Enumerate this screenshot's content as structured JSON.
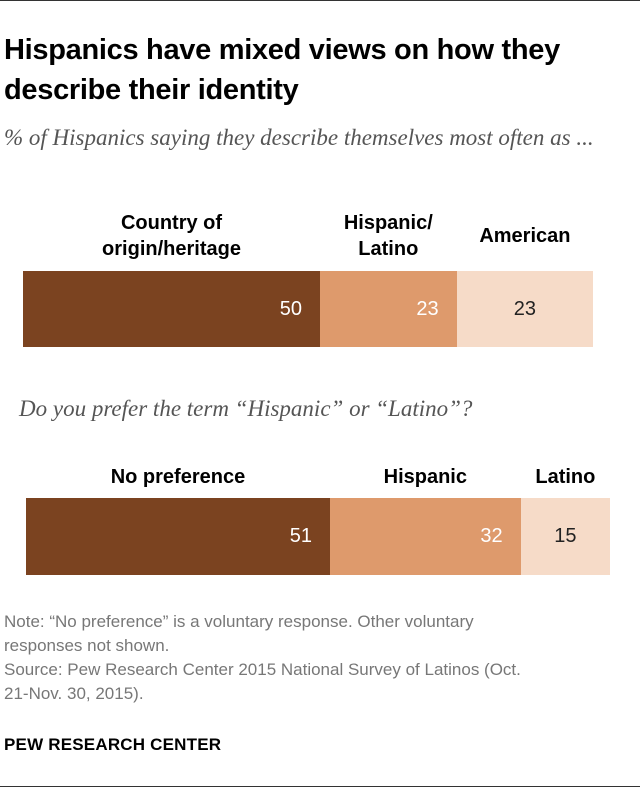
{
  "title": "Hispanics have mixed views on how they describe their identity",
  "chart_data": [
    {
      "type": "bar",
      "orientation": "horizontal-stacked",
      "subtitle": "% of Hispanics saying they describe themselves most often as ...",
      "categories": [
        "Country of origin/heritage",
        "Hispanic/ Latino",
        "American"
      ],
      "category_lines": [
        [
          "Country of",
          "origin/heritage"
        ],
        [
          "Hispanic/",
          "Latino"
        ],
        [
          "American"
        ]
      ],
      "values": [
        50,
        23,
        23
      ],
      "colors": [
        "#7b4320",
        "#de9a6c",
        "#f6dbc8"
      ],
      "text_colors": [
        "#ffffff",
        "#ffffff",
        "#222222"
      ]
    },
    {
      "type": "bar",
      "orientation": "horizontal-stacked",
      "subtitle": "Do you prefer the term “Hispanic” or “Latino”?",
      "categories": [
        "No preference",
        "Hispanic",
        "Latino"
      ],
      "category_lines": [
        [
          "No preference"
        ],
        [
          "Hispanic"
        ],
        [
          "Latino"
        ]
      ],
      "values": [
        51,
        32,
        15
      ],
      "colors": [
        "#7b4320",
        "#de9a6c",
        "#f6dbc8"
      ],
      "text_colors": [
        "#ffffff",
        "#ffffff",
        "#222222"
      ]
    }
  ],
  "note_lines": [
    "Note: “No preference” is a voluntary response. Other voluntary",
    "responses not shown.",
    "Source: Pew Research Center 2015 National Survey of Latinos (Oct.",
    "21-Nov. 30, 2015)."
  ],
  "brand": "PEW RESEARCH CENTER"
}
